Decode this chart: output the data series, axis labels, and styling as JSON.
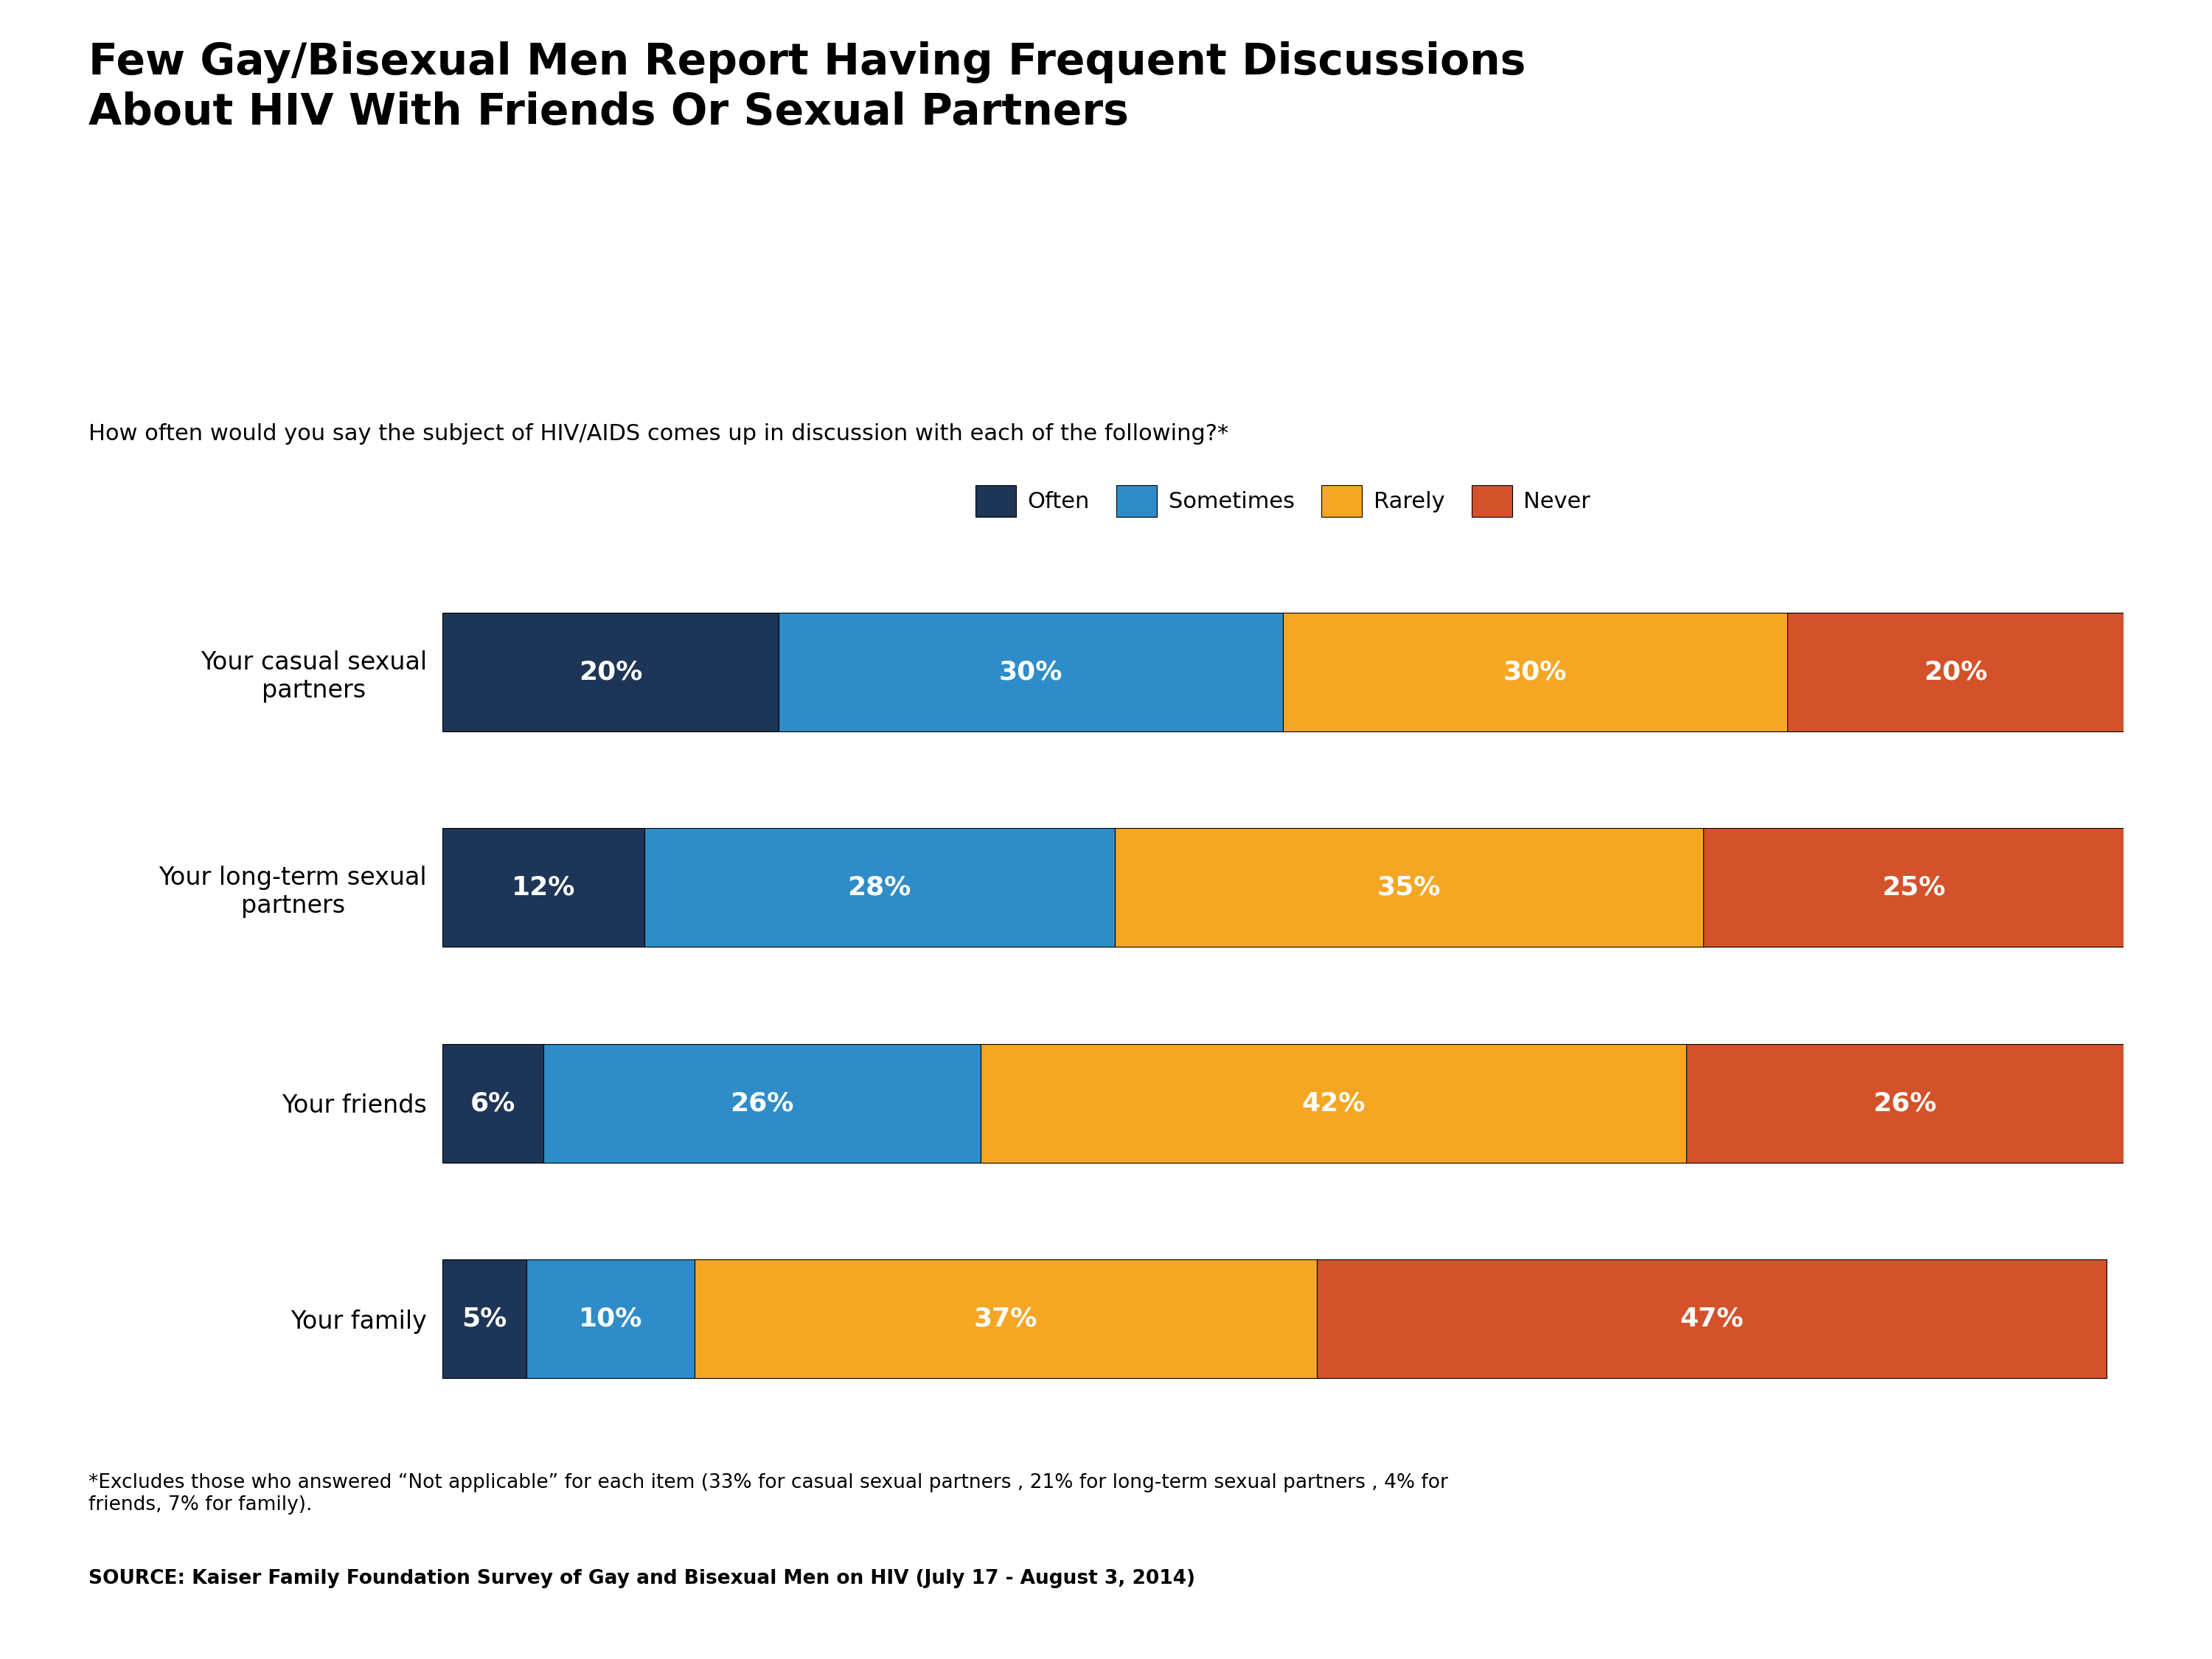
{
  "title_line1": "Few Gay/Bisexual Men Report Having Frequent Discussions",
  "title_line2": "About HIV With Friends Or Sexual Partners",
  "subtitle": "How often would you say the subject of HIV/AIDS comes up in discussion with each of the following?*",
  "legend_labels": [
    "Often",
    "Sometimes",
    "Rarely",
    "Never"
  ],
  "colors": [
    "#1d3557",
    "#2e8dc8",
    "#f5a623",
    "#d4522a"
  ],
  "categories": [
    "Your casual sexual\npartners",
    "Your long-term sexual\npartners",
    "Your friends",
    "Your family"
  ],
  "data": [
    [
      20,
      30,
      30,
      20
    ],
    [
      12,
      28,
      35,
      25
    ],
    [
      6,
      26,
      42,
      26
    ],
    [
      5,
      10,
      37,
      47
    ]
  ],
  "footnote_line1": "*Excludes those who answered “Not applicable” for each item (33% for casual sexual partners , 21% for long-term sexual partners , 4% for",
  "footnote_line2": "friends, 7% for family).",
  "source": "SOURCE: Kaiser Family Foundation Survey of Gay and Bisexual Men on HIV (July 17 - August 3, 2014)",
  "background_color": "#ffffff",
  "bar_height": 0.55,
  "title_fontsize": 42,
  "subtitle_fontsize": 22,
  "legend_fontsize": 22,
  "label_fontsize": 26,
  "category_fontsize": 24,
  "footnote_fontsize": 19,
  "source_fontsize": 19
}
